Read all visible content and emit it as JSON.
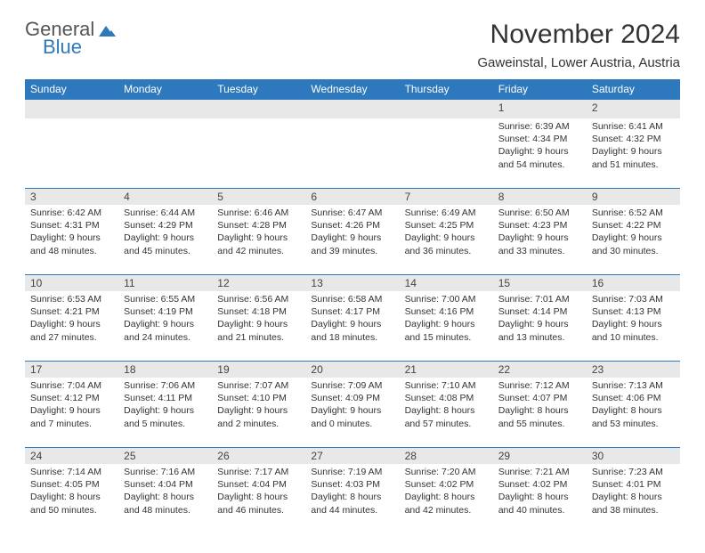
{
  "logo": {
    "text_top": "General",
    "text_bottom": "Blue",
    "shape_color": "#2e78bd",
    "text_top_color": "#555555",
    "text_bottom_color": "#2e78bd"
  },
  "header": {
    "title": "November 2024",
    "location": "Gaweinstal, Lower Austria, Austria"
  },
  "colors": {
    "header_bg": "#2e78bd",
    "header_text": "#ffffff",
    "daynum_bg": "#e8e8e8",
    "border": "#2e78bd",
    "body_text": "#333333"
  },
  "day_headers": [
    "Sunday",
    "Monday",
    "Tuesday",
    "Wednesday",
    "Thursday",
    "Friday",
    "Saturday"
  ],
  "weeks": [
    [
      null,
      null,
      null,
      null,
      null,
      {
        "n": "1",
        "sr": "6:39 AM",
        "ss": "4:34 PM",
        "dl": "9 hours and 54 minutes."
      },
      {
        "n": "2",
        "sr": "6:41 AM",
        "ss": "4:32 PM",
        "dl": "9 hours and 51 minutes."
      }
    ],
    [
      {
        "n": "3",
        "sr": "6:42 AM",
        "ss": "4:31 PM",
        "dl": "9 hours and 48 minutes."
      },
      {
        "n": "4",
        "sr": "6:44 AM",
        "ss": "4:29 PM",
        "dl": "9 hours and 45 minutes."
      },
      {
        "n": "5",
        "sr": "6:46 AM",
        "ss": "4:28 PM",
        "dl": "9 hours and 42 minutes."
      },
      {
        "n": "6",
        "sr": "6:47 AM",
        "ss": "4:26 PM",
        "dl": "9 hours and 39 minutes."
      },
      {
        "n": "7",
        "sr": "6:49 AM",
        "ss": "4:25 PM",
        "dl": "9 hours and 36 minutes."
      },
      {
        "n": "8",
        "sr": "6:50 AM",
        "ss": "4:23 PM",
        "dl": "9 hours and 33 minutes."
      },
      {
        "n": "9",
        "sr": "6:52 AM",
        "ss": "4:22 PM",
        "dl": "9 hours and 30 minutes."
      }
    ],
    [
      {
        "n": "10",
        "sr": "6:53 AM",
        "ss": "4:21 PM",
        "dl": "9 hours and 27 minutes."
      },
      {
        "n": "11",
        "sr": "6:55 AM",
        "ss": "4:19 PM",
        "dl": "9 hours and 24 minutes."
      },
      {
        "n": "12",
        "sr": "6:56 AM",
        "ss": "4:18 PM",
        "dl": "9 hours and 21 minutes."
      },
      {
        "n": "13",
        "sr": "6:58 AM",
        "ss": "4:17 PM",
        "dl": "9 hours and 18 minutes."
      },
      {
        "n": "14",
        "sr": "7:00 AM",
        "ss": "4:16 PM",
        "dl": "9 hours and 15 minutes."
      },
      {
        "n": "15",
        "sr": "7:01 AM",
        "ss": "4:14 PM",
        "dl": "9 hours and 13 minutes."
      },
      {
        "n": "16",
        "sr": "7:03 AM",
        "ss": "4:13 PM",
        "dl": "9 hours and 10 minutes."
      }
    ],
    [
      {
        "n": "17",
        "sr": "7:04 AM",
        "ss": "4:12 PM",
        "dl": "9 hours and 7 minutes."
      },
      {
        "n": "18",
        "sr": "7:06 AM",
        "ss": "4:11 PM",
        "dl": "9 hours and 5 minutes."
      },
      {
        "n": "19",
        "sr": "7:07 AM",
        "ss": "4:10 PM",
        "dl": "9 hours and 2 minutes."
      },
      {
        "n": "20",
        "sr": "7:09 AM",
        "ss": "4:09 PM",
        "dl": "9 hours and 0 minutes."
      },
      {
        "n": "21",
        "sr": "7:10 AM",
        "ss": "4:08 PM",
        "dl": "8 hours and 57 minutes."
      },
      {
        "n": "22",
        "sr": "7:12 AM",
        "ss": "4:07 PM",
        "dl": "8 hours and 55 minutes."
      },
      {
        "n": "23",
        "sr": "7:13 AM",
        "ss": "4:06 PM",
        "dl": "8 hours and 53 minutes."
      }
    ],
    [
      {
        "n": "24",
        "sr": "7:14 AM",
        "ss": "4:05 PM",
        "dl": "8 hours and 50 minutes."
      },
      {
        "n": "25",
        "sr": "7:16 AM",
        "ss": "4:04 PM",
        "dl": "8 hours and 48 minutes."
      },
      {
        "n": "26",
        "sr": "7:17 AM",
        "ss": "4:04 PM",
        "dl": "8 hours and 46 minutes."
      },
      {
        "n": "27",
        "sr": "7:19 AM",
        "ss": "4:03 PM",
        "dl": "8 hours and 44 minutes."
      },
      {
        "n": "28",
        "sr": "7:20 AM",
        "ss": "4:02 PM",
        "dl": "8 hours and 42 minutes."
      },
      {
        "n": "29",
        "sr": "7:21 AM",
        "ss": "4:02 PM",
        "dl": "8 hours and 40 minutes."
      },
      {
        "n": "30",
        "sr": "7:23 AM",
        "ss": "4:01 PM",
        "dl": "8 hours and 38 minutes."
      }
    ]
  ],
  "labels": {
    "sunrise": "Sunrise:",
    "sunset": "Sunset:",
    "daylight": "Daylight:"
  }
}
